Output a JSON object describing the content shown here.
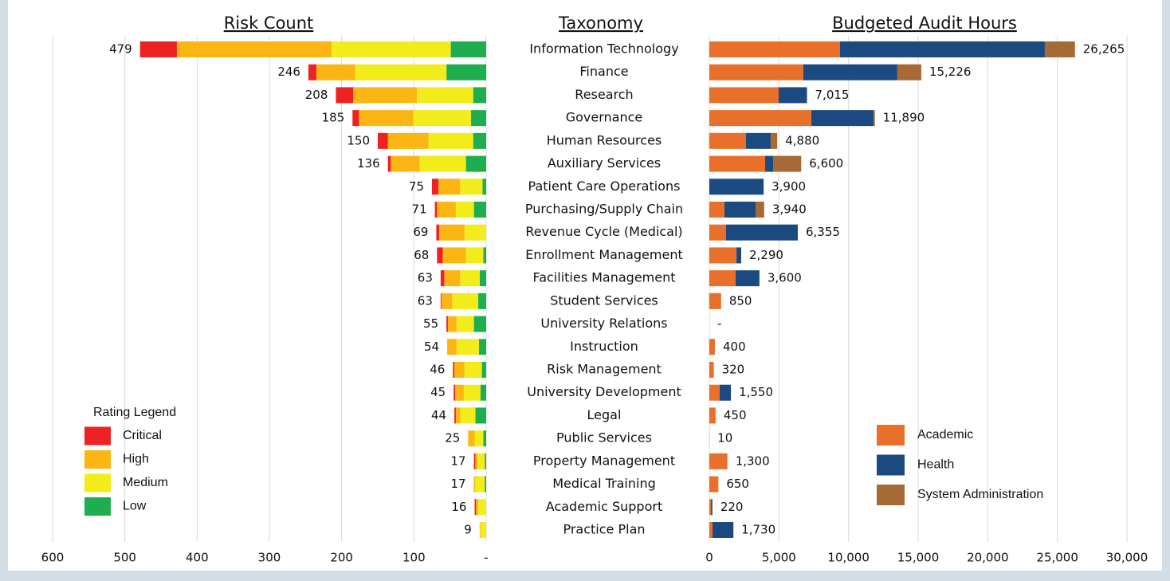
{
  "taxonomy": {
    "title": "Taxonomy",
    "categories": [
      "Information Technology",
      "Finance",
      "Research",
      "Governance",
      "Human Resources",
      "Auxiliary Services",
      "Patient Care Operations",
      "Purchasing/Supply Chain",
      "Revenue Cycle (Medical)",
      "Enrollment Management",
      "Facilities Management",
      "Student Services",
      "University Relations",
      "Instruction",
      "Risk Management",
      "University Development",
      "Legal",
      "Public Services",
      "Property Management",
      "Medical Training",
      "Academic Support",
      "Practice Plan"
    ]
  },
  "chart_data": [
    {
      "type": "bar",
      "orientation": "horizontal",
      "stacked": true,
      "title": "Risk Count",
      "legend_title": "Rating Legend",
      "legend": "lower left",
      "grid": true,
      "xlim": [
        600,
        0
      ],
      "xticks": [
        600,
        500,
        400,
        300,
        200,
        100,
        {
          "value": 0,
          "label": "-"
        }
      ],
      "totals": [
        479,
        246,
        208,
        185,
        150,
        136,
        75,
        71,
        69,
        68,
        63,
        63,
        55,
        54,
        46,
        45,
        44,
        25,
        17,
        17,
        16,
        9
      ],
      "series": [
        {
          "name": "Low",
          "color": "#1fae4f",
          "values": [
            49,
            55,
            18,
            21,
            18,
            28,
            5,
            17,
            0,
            4,
            9,
            11,
            17,
            10,
            6,
            8,
            15,
            4,
            2,
            2,
            0,
            0
          ]
        },
        {
          "name": "Medium",
          "color": "#f2ec1b",
          "values": [
            165,
            126,
            78,
            80,
            62,
            64,
            31,
            25,
            30,
            24,
            27,
            36,
            24,
            31,
            24,
            23,
            21,
            12,
            10,
            13,
            11,
            8
          ]
        },
        {
          "name": "High",
          "color": "#fbb614",
          "values": [
            214,
            54,
            88,
            75,
            56,
            40,
            30,
            26,
            35,
            32,
            22,
            15,
            12,
            13,
            14,
            12,
            6,
            9,
            3,
            2,
            3,
            1
          ]
        },
        {
          "name": "Critical",
          "color": "#ee2222",
          "values": [
            51,
            11,
            24,
            9,
            14,
            4,
            9,
            3,
            4,
            8,
            5,
            1,
            2,
            0,
            2,
            2,
            2,
            0,
            2,
            0,
            2,
            0
          ]
        }
      ]
    },
    {
      "type": "bar",
      "orientation": "horizontal",
      "stacked": true,
      "title": "Budgeted Audit Hours",
      "legend": "lower right",
      "grid": true,
      "xlim": [
        0,
        30000
      ],
      "xticks": [
        0,
        {
          "value": 5000,
          "label": "5,000"
        },
        {
          "value": 10000,
          "label": "10,000"
        },
        {
          "value": 15000,
          "label": "15,000"
        },
        {
          "value": 20000,
          "label": "20,000"
        },
        {
          "value": 25000,
          "label": "25,000"
        },
        {
          "value": 30000,
          "label": "30,000"
        }
      ],
      "totals": [
        26265,
        15226,
        7015,
        11890,
        4880,
        6600,
        3900,
        3940,
        6355,
        2290,
        3600,
        850,
        0,
        400,
        320,
        1550,
        450,
        10,
        1300,
        650,
        220,
        1730
      ],
      "total_labels": [
        "26,265",
        "15,226",
        "7,015",
        "11,890",
        "4,880",
        "6,600",
        "3,900",
        "3,940",
        "6,355",
        "2,290",
        "3,600",
        "850",
        "-",
        "400",
        "320",
        "1,550",
        "450",
        "10",
        "1,300",
        "650",
        "220",
        "1,730"
      ],
      "series": [
        {
          "name": "Academic",
          "color": "#e8702a",
          "values": [
            9390,
            6750,
            4980,
            7330,
            2630,
            4010,
            0,
            1090,
            1200,
            1950,
            1890,
            850,
            0,
            400,
            320,
            745,
            450,
            10,
            1300,
            650,
            120,
            230
          ]
        },
        {
          "name": "Health",
          "color": "#1b4a80",
          "values": [
            14710,
            6755,
            2035,
            4460,
            1775,
            570,
            3900,
            2230,
            5155,
            340,
            1710,
            0,
            0,
            0,
            0,
            805,
            0,
            0,
            0,
            0,
            100,
            1500
          ]
        },
        {
          "name": "System Administration",
          "color": "#a56a35",
          "values": [
            2165,
            1721,
            0,
            100,
            475,
            2020,
            0,
            620,
            0,
            0,
            0,
            0,
            0,
            0,
            0,
            0,
            0,
            0,
            0,
            0,
            0,
            0
          ]
        }
      ]
    }
  ]
}
